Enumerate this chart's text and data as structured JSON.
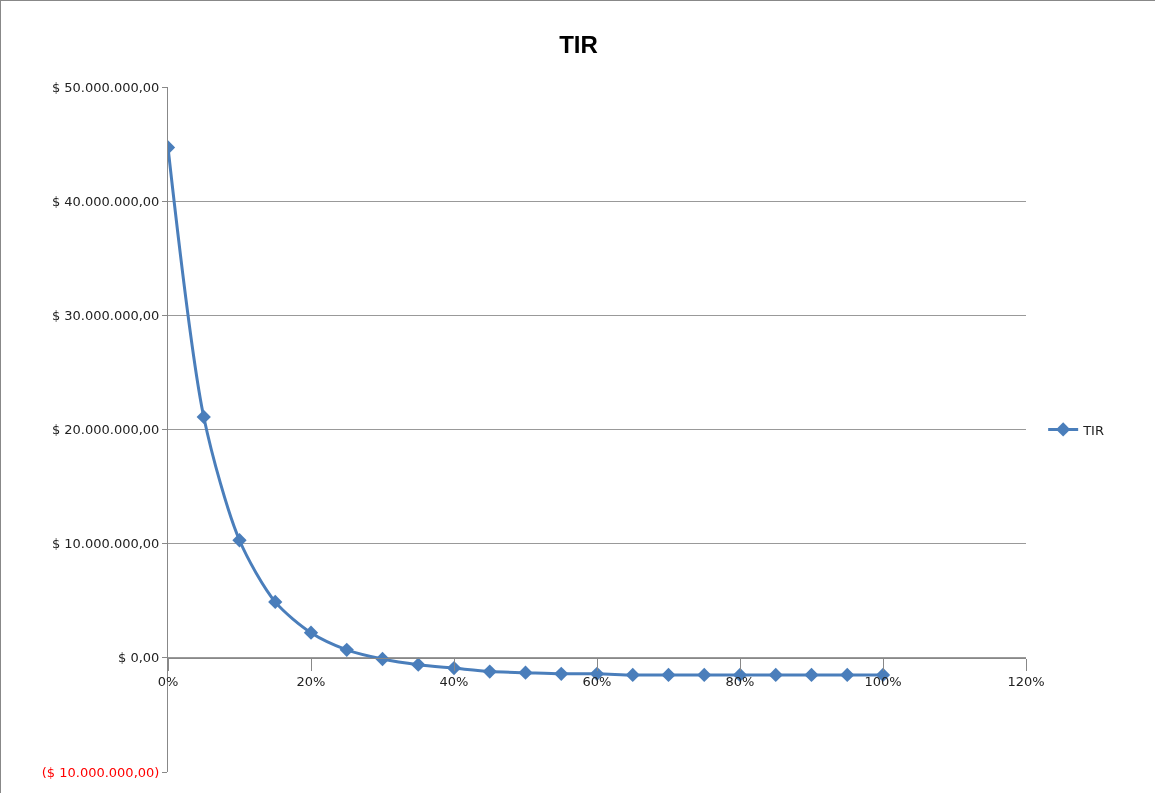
{
  "chart_data": {
    "type": "line",
    "title": "TIR",
    "x": [
      0,
      5,
      10,
      15,
      20,
      25,
      30,
      35,
      40,
      45,
      50,
      55,
      60,
      65,
      70,
      75,
      80,
      85,
      90,
      95,
      100
    ],
    "series": [
      {
        "name": "TIR",
        "color": "#4a7ebb",
        "values": [
          44700000,
          21100000,
          10300000,
          4900000,
          2200000,
          700000,
          -100000,
          -600000,
          -900000,
          -1200000,
          -1300000,
          -1400000,
          -1400000,
          -1500000,
          -1500000,
          -1500000,
          -1500000,
          -1500000,
          -1500000,
          -1500000,
          -1500000
        ]
      }
    ],
    "xlim": [
      0,
      120
    ],
    "xticks": [
      {
        "value": 0,
        "label": "0%"
      },
      {
        "value": 20,
        "label": "20%"
      },
      {
        "value": 40,
        "label": "40%"
      },
      {
        "value": 60,
        "label": "60%"
      },
      {
        "value": 80,
        "label": "80%"
      },
      {
        "value": 100,
        "label": "100%"
      },
      {
        "value": 120,
        "label": "120%"
      }
    ],
    "ylim": [
      -10000000,
      50000000
    ],
    "yticks": [
      {
        "value": -10000000,
        "label": "($ 10.000.000,00)"
      },
      {
        "value": 0,
        "label": "$ 0,00"
      },
      {
        "value": 10000000,
        "label": "$ 10.000.000,00"
      },
      {
        "value": 20000000,
        "label": "$ 20.000.000,00"
      },
      {
        "value": 30000000,
        "label": "$ 30.000.000,00"
      },
      {
        "value": 40000000,
        "label": "$ 40.000.000,00"
      },
      {
        "value": 50000000,
        "label": "$ 50.000.000,00"
      }
    ],
    "grid": "y",
    "legend": "right",
    "marker": "diamond",
    "line_style": "solid"
  }
}
